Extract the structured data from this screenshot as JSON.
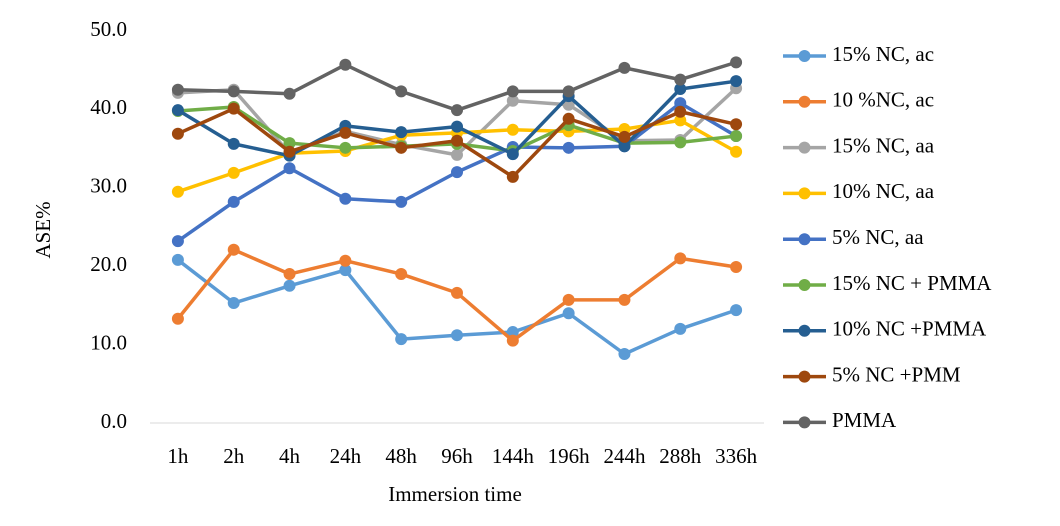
{
  "chart_data": {
    "type": "line",
    "y_label": "ASE%",
    "x_label": "Immersion time",
    "categories": [
      "1h",
      "2h",
      "4h",
      "24h",
      "48h",
      "96h",
      "144h",
      "196h",
      "244h",
      "288h",
      "336h"
    ],
    "ylim": [
      0,
      50
    ],
    "yticks": [
      {
        "value": 0,
        "label": "0.0"
      },
      {
        "value": 10,
        "label": "10.0"
      },
      {
        "value": 20,
        "label": "20.0"
      },
      {
        "value": 30,
        "label": "30.0"
      },
      {
        "value": 40,
        "label": "40.0"
      },
      {
        "value": 50,
        "label": "50.0"
      }
    ],
    "grid": false,
    "legend": "right",
    "series": [
      {
        "name": "15% NC, ac",
        "color": "#5b9bd5",
        "values": [
          20.8,
          15.3,
          17.5,
          19.5,
          10.7,
          11.2,
          11.6,
          14.0,
          8.8,
          12.0,
          14.4
        ]
      },
      {
        "name": "10 %NC, ac",
        "color": "#ed7d31",
        "values": [
          13.3,
          22.1,
          19.0,
          20.7,
          19.0,
          16.6,
          10.5,
          15.7,
          15.7,
          21.0,
          19.9
        ]
      },
      {
        "name": "15% NC, aa",
        "color": "#a5a5a5",
        "values": [
          42.1,
          42.5,
          34.4,
          37.2,
          35.5,
          34.2,
          41.1,
          40.6,
          36.0,
          36.1,
          42.7
        ]
      },
      {
        "name": "10% NC, aa",
        "color": "#ffc000",
        "values": [
          29.5,
          31.9,
          34.4,
          34.7,
          36.7,
          37.0,
          37.4,
          37.2,
          37.5,
          38.6,
          34.6
        ]
      },
      {
        "name": "5%  NC, aa",
        "color": "#4472c4",
        "values": [
          23.2,
          28.2,
          32.5,
          28.6,
          28.2,
          32.0,
          35.2,
          35.1,
          35.3,
          40.8,
          36.6
        ]
      },
      {
        "name": "15% NC + PMMA",
        "color": "#70ad47",
        "values": [
          39.8,
          40.3,
          35.7,
          35.1,
          35.3,
          35.6,
          34.7,
          38.0,
          35.7,
          35.8,
          36.6
        ]
      },
      {
        "name": "10% NC +PMMA",
        "color": "#255e91",
        "values": [
          39.9,
          35.6,
          34.1,
          37.9,
          37.1,
          37.8,
          34.3,
          41.7,
          35.3,
          42.6,
          43.6
        ]
      },
      {
        "name": "5% NC +PMM",
        "color": "#9e480e",
        "values": [
          36.9,
          40.1,
          34.6,
          37.0,
          35.1,
          36.0,
          31.4,
          38.8,
          36.5,
          39.7,
          38.1
        ]
      },
      {
        "name": "PMMA",
        "color": "#636363",
        "values": [
          42.5,
          42.3,
          42.0,
          45.7,
          42.3,
          39.9,
          42.3,
          42.3,
          45.3,
          43.8,
          46.0
        ]
      }
    ]
  }
}
